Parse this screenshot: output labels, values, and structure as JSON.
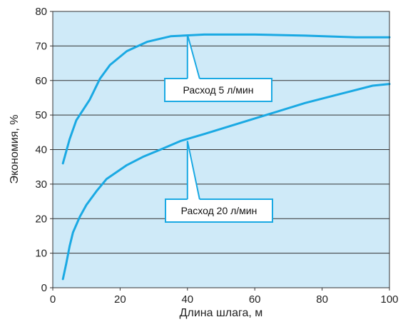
{
  "chart_data": {
    "type": "line",
    "xlabel": "Длина шлага, м",
    "ylabel": "Экономия, %",
    "xlim": [
      0,
      100
    ],
    "ylim": [
      0,
      80
    ],
    "xticks": [
      0,
      20,
      40,
      60,
      80,
      100
    ],
    "yticks": [
      0,
      10,
      20,
      30,
      40,
      50,
      60,
      70,
      80
    ],
    "grid": "horizontal",
    "colors": {
      "plot_background": "#cfeaf8",
      "series": "#1aa9e3",
      "grid": "#333333",
      "callout_border": "#1aa9e3",
      "callout_fill": "#ffffff"
    },
    "series": [
      {
        "name": "Расход 5 л/мин",
        "x": [
          3,
          5,
          7,
          8,
          11,
          14,
          17,
          22,
          28,
          35,
          45,
          60,
          75,
          90,
          100
        ],
        "y": [
          36,
          43,
          48.5,
          50,
          54.5,
          60.5,
          64.5,
          68.5,
          71.2,
          72.8,
          73.3,
          73.3,
          73.0,
          72.5,
          72.5
        ]
      },
      {
        "name": "Расход 20 л/мин",
        "x": [
          3,
          4,
          5,
          6,
          8,
          10,
          13,
          16,
          22,
          27,
          32,
          38,
          45,
          55,
          65,
          75,
          85,
          95,
          100
        ],
        "y": [
          2.5,
          7,
          12,
          16,
          20.5,
          24,
          28,
          31.5,
          35.5,
          38,
          40,
          42.5,
          44.5,
          47.5,
          50.5,
          53.5,
          56,
          58.5,
          59
        ]
      }
    ],
    "annotations": [
      {
        "text": "Расход 5 л/мин",
        "series": 0,
        "anchor_x": 40,
        "anchor_y": 73.3
      },
      {
        "text": "Расход 20 л/мин",
        "series": 1,
        "anchor_x": 40,
        "anchor_y": 42.5
      }
    ]
  }
}
